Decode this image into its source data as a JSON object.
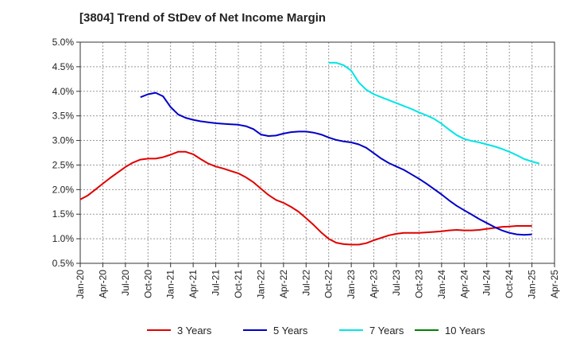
{
  "chart_data": {
    "type": "line",
    "title": "[3804]  Trend of StDev of Net Income Margin",
    "xlabel": "",
    "ylabel": "",
    "ylim": [
      0.5,
      5.0
    ],
    "yticks": [
      "0.5%",
      "1.0%",
      "1.5%",
      "2.0%",
      "2.5%",
      "3.0%",
      "3.5%",
      "4.0%",
      "4.5%",
      "5.0%"
    ],
    "xticks": [
      "Jan-20",
      "Apr-20",
      "Jul-20",
      "Oct-20",
      "Jan-21",
      "Apr-21",
      "Jul-21",
      "Oct-21",
      "Jan-22",
      "Apr-22",
      "Jul-22",
      "Oct-22",
      "Jan-23",
      "Apr-23",
      "Jul-23",
      "Oct-23",
      "Jan-24",
      "Apr-24",
      "Jul-24",
      "Oct-24",
      "Jan-25",
      "Apr-25"
    ],
    "grid": true,
    "legend": "bottom",
    "series": [
      {
        "name": "3 Years",
        "color": "#e00000",
        "points": [
          [
            "Jan-20",
            1.8
          ],
          [
            "Feb-20",
            1.88
          ],
          [
            "Mar-20",
            2.0
          ],
          [
            "Apr-20",
            2.12
          ],
          [
            "May-20",
            2.24
          ],
          [
            "Jun-20",
            2.35
          ],
          [
            "Jul-20",
            2.46
          ],
          [
            "Aug-20",
            2.55
          ],
          [
            "Sep-20",
            2.61
          ],
          [
            "Oct-20",
            2.63
          ],
          [
            "Nov-20",
            2.63
          ],
          [
            "Dec-20",
            2.66
          ],
          [
            "Jan-21",
            2.71
          ],
          [
            "Feb-21",
            2.77
          ],
          [
            "Mar-21",
            2.77
          ],
          [
            "Apr-21",
            2.72
          ],
          [
            "May-21",
            2.62
          ],
          [
            "Jun-21",
            2.53
          ],
          [
            "Jul-21",
            2.47
          ],
          [
            "Aug-21",
            2.43
          ],
          [
            "Sep-21",
            2.38
          ],
          [
            "Oct-21",
            2.33
          ],
          [
            "Nov-21",
            2.25
          ],
          [
            "Dec-21",
            2.15
          ],
          [
            "Jan-22",
            2.02
          ],
          [
            "Feb-22",
            1.89
          ],
          [
            "Mar-22",
            1.79
          ],
          [
            "Apr-22",
            1.73
          ],
          [
            "May-22",
            1.65
          ],
          [
            "Jun-22",
            1.55
          ],
          [
            "Jul-22",
            1.42
          ],
          [
            "Aug-22",
            1.28
          ],
          [
            "Sep-22",
            1.13
          ],
          [
            "Oct-22",
            1.0
          ],
          [
            "Nov-22",
            0.92
          ],
          [
            "Dec-22",
            0.89
          ],
          [
            "Jan-23",
            0.88
          ],
          [
            "Feb-23",
            0.88
          ],
          [
            "Mar-23",
            0.91
          ],
          [
            "Apr-23",
            0.97
          ],
          [
            "May-23",
            1.02
          ],
          [
            "Jun-23",
            1.07
          ],
          [
            "Jul-23",
            1.1
          ],
          [
            "Aug-23",
            1.12
          ],
          [
            "Sep-23",
            1.12
          ],
          [
            "Oct-23",
            1.12
          ],
          [
            "Nov-23",
            1.13
          ],
          [
            "Dec-23",
            1.14
          ],
          [
            "Jan-24",
            1.15
          ],
          [
            "Feb-24",
            1.17
          ],
          [
            "Mar-24",
            1.18
          ],
          [
            "Apr-24",
            1.17
          ],
          [
            "May-24",
            1.17
          ],
          [
            "Jun-24",
            1.18
          ],
          [
            "Jul-24",
            1.2
          ],
          [
            "Aug-24",
            1.22
          ],
          [
            "Sep-24",
            1.24
          ],
          [
            "Oct-24",
            1.25
          ],
          [
            "Nov-24",
            1.26
          ],
          [
            "Dec-24",
            1.26
          ],
          [
            "Jan-25",
            1.26
          ]
        ]
      },
      {
        "name": "5 Years",
        "color": "#0000c8",
        "points": [
          [
            "Sep-20",
            3.88
          ],
          [
            "Oct-20",
            3.94
          ],
          [
            "Nov-20",
            3.97
          ],
          [
            "Dec-20",
            3.9
          ],
          [
            "Jan-21",
            3.68
          ],
          [
            "Feb-21",
            3.53
          ],
          [
            "Mar-21",
            3.46
          ],
          [
            "Apr-21",
            3.42
          ],
          [
            "May-21",
            3.39
          ],
          [
            "Jun-21",
            3.37
          ],
          [
            "Jul-21",
            3.35
          ],
          [
            "Aug-21",
            3.34
          ],
          [
            "Sep-21",
            3.33
          ],
          [
            "Oct-21",
            3.32
          ],
          [
            "Nov-21",
            3.29
          ],
          [
            "Dec-21",
            3.23
          ],
          [
            "Jan-22",
            3.12
          ],
          [
            "Feb-22",
            3.09
          ],
          [
            "Mar-22",
            3.1
          ],
          [
            "Apr-22",
            3.14
          ],
          [
            "May-22",
            3.17
          ],
          [
            "Jun-22",
            3.18
          ],
          [
            "Jul-22",
            3.18
          ],
          [
            "Aug-22",
            3.16
          ],
          [
            "Sep-22",
            3.12
          ],
          [
            "Oct-22",
            3.06
          ],
          [
            "Nov-22",
            3.01
          ],
          [
            "Dec-22",
            2.98
          ],
          [
            "Jan-23",
            2.96
          ],
          [
            "Feb-23",
            2.92
          ],
          [
            "Mar-23",
            2.85
          ],
          [
            "Apr-23",
            2.74
          ],
          [
            "May-23",
            2.63
          ],
          [
            "Jun-23",
            2.54
          ],
          [
            "Jul-23",
            2.47
          ],
          [
            "Aug-23",
            2.4
          ],
          [
            "Sep-23",
            2.31
          ],
          [
            "Oct-23",
            2.22
          ],
          [
            "Nov-23",
            2.12
          ],
          [
            "Dec-23",
            2.01
          ],
          [
            "Jan-24",
            1.9
          ],
          [
            "Feb-24",
            1.78
          ],
          [
            "Mar-24",
            1.67
          ],
          [
            "Apr-24",
            1.58
          ],
          [
            "May-24",
            1.49
          ],
          [
            "Jun-24",
            1.4
          ],
          [
            "Jul-24",
            1.32
          ],
          [
            "Aug-24",
            1.24
          ],
          [
            "Sep-24",
            1.17
          ],
          [
            "Oct-24",
            1.12
          ],
          [
            "Nov-24",
            1.09
          ],
          [
            "Dec-24",
            1.08
          ],
          [
            "Jan-25",
            1.09
          ]
        ]
      },
      {
        "name": "7 Years",
        "color": "#00e5e5",
        "points": [
          [
            "Oct-22",
            4.58
          ],
          [
            "Nov-22",
            4.58
          ],
          [
            "Dec-22",
            4.53
          ],
          [
            "Jan-23",
            4.42
          ],
          [
            "Feb-23",
            4.18
          ],
          [
            "Mar-23",
            4.03
          ],
          [
            "Apr-23",
            3.94
          ],
          [
            "May-23",
            3.88
          ],
          [
            "Jun-23",
            3.82
          ],
          [
            "Jul-23",
            3.76
          ],
          [
            "Aug-23",
            3.7
          ],
          [
            "Sep-23",
            3.64
          ],
          [
            "Oct-23",
            3.57
          ],
          [
            "Nov-23",
            3.51
          ],
          [
            "Dec-23",
            3.44
          ],
          [
            "Jan-24",
            3.34
          ],
          [
            "Feb-24",
            3.22
          ],
          [
            "Mar-24",
            3.11
          ],
          [
            "Apr-24",
            3.03
          ],
          [
            "May-24",
            2.99
          ],
          [
            "Jun-24",
            2.96
          ],
          [
            "Jul-24",
            2.92
          ],
          [
            "Aug-24",
            2.88
          ],
          [
            "Sep-24",
            2.83
          ],
          [
            "Oct-24",
            2.77
          ],
          [
            "Nov-24",
            2.7
          ],
          [
            "Dec-24",
            2.62
          ],
          [
            "Jan-25",
            2.57
          ],
          [
            "Feb-25",
            2.53
          ]
        ]
      },
      {
        "name": "10 Years",
        "color": "#008000",
        "points": []
      }
    ]
  }
}
